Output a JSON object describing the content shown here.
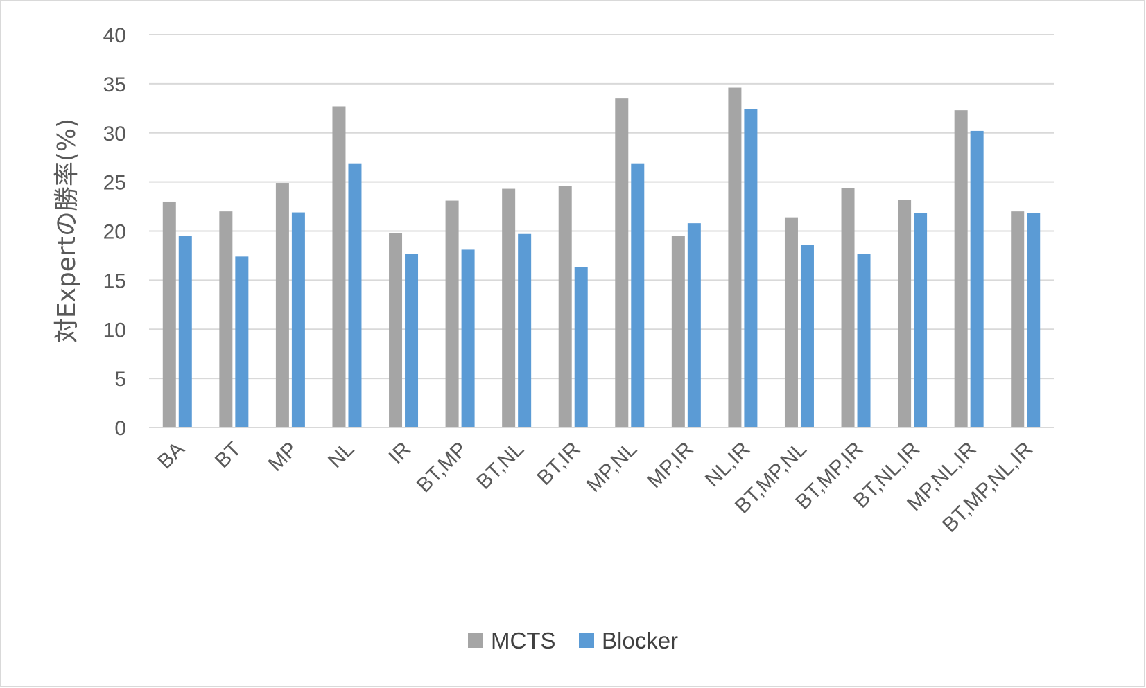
{
  "chart_data": {
    "type": "bar",
    "title": "",
    "xlabel": "",
    "ylabel": "対Expertの勝率(%)",
    "ylim": [
      0,
      40
    ],
    "yticks": [
      0,
      5,
      10,
      15,
      20,
      25,
      30,
      35,
      40
    ],
    "grid": true,
    "legend_position": "bottom",
    "categories": [
      "BA",
      "BT",
      "MP",
      "NL",
      "IR",
      "BT,MP",
      "BT,NL",
      "BT,IR",
      "MP,NL",
      "MP,IR",
      "NL,IR",
      "BT,MP,NL",
      "BT,MP,IR",
      "BT,NL,IR",
      "MP,NL,IR",
      "BT,MP,NL,IR"
    ],
    "series": [
      {
        "name": "MCTS",
        "color": "#a5a5a5",
        "values": [
          23.0,
          22.0,
          24.9,
          32.7,
          19.8,
          23.1,
          24.3,
          24.6,
          33.5,
          19.5,
          34.6,
          21.4,
          24.4,
          23.2,
          32.3,
          22.0
        ]
      },
      {
        "name": "Blocker",
        "color": "#5b9bd5",
        "values": [
          19.5,
          17.4,
          21.9,
          26.9,
          17.7,
          18.1,
          19.7,
          16.3,
          26.9,
          20.8,
          32.4,
          18.6,
          17.7,
          21.8,
          30.2,
          21.8
        ]
      }
    ]
  },
  "colors": {
    "gridline": "#d9d9d9",
    "axis_line": "#d9d9d9",
    "text": "#595959"
  }
}
